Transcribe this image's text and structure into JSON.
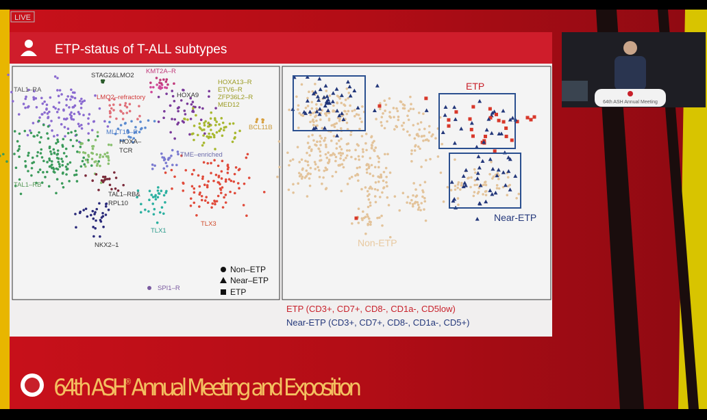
{
  "stream": {
    "badge": "LIVE"
  },
  "slide": {
    "title": "ETP-status of T-ALL subtypes",
    "clusters": [
      "TAL1–RA",
      "STAG2&LMO2",
      "KMT2A–R",
      "HOXA9",
      "HOXA13–R",
      "ETV6–R",
      "ZFP36L2–R",
      "MED12",
      "BCL11B",
      "LMO2–refractory",
      "MLLT10–R",
      "HOXA–",
      "TCR",
      "TME–enriched",
      "TAL1–RB",
      "TAL1–RB&",
      "RPL10",
      "TLX1",
      "TLX3",
      "NKX2–1",
      "SPI1–R"
    ],
    "legend": [
      "Non–ETP",
      "Near–ETP",
      "ETP"
    ],
    "etp_labels": [
      "ETP",
      "Near-ETP",
      "Non-ETP"
    ],
    "footnotes": [
      "ETP (CD3+, CD7+, CD8-, CD1a-, CD5low)",
      "Near-ETP (CD3+, CD7+, CD8-, CD1a-, CD5+)"
    ]
  },
  "banner": {
    "lead": "64th ASH",
    "mark": "®",
    "rest": "Annual Meeting and Exposition"
  },
  "podium": {
    "text": "64th ASH Annual Meeting"
  }
}
